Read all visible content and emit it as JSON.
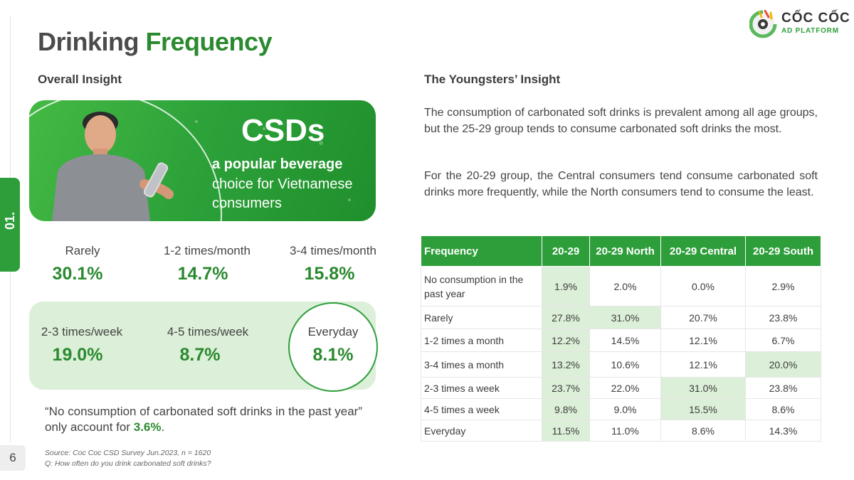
{
  "page": {
    "number": "6",
    "section": "01.",
    "title_part1": "Drinking",
    "title_part2": "Frequency"
  },
  "logo": {
    "brand": "CỐC CỐC",
    "sub": "AD PLATFORM"
  },
  "colors": {
    "brand_green": "#2e9e3a",
    "light_green": "#dcefd8",
    "text_dark": "#3d3d3d"
  },
  "overall": {
    "heading": "Overall Insight",
    "banner": {
      "title": "CSDs",
      "line1": "a popular beverage",
      "line2": "choice for Vietnamese",
      "line3": "consumers"
    },
    "stats": [
      {
        "label": "Rarely",
        "value": "30.1%"
      },
      {
        "label": "1-2 times/month",
        "value": "14.7%"
      },
      {
        "label": "3-4 times/month",
        "value": "15.8%"
      },
      {
        "label": "2-3 times/week",
        "value": "19.0%"
      },
      {
        "label": "4-5 times/week",
        "value": "8.7%"
      },
      {
        "label": "Everyday",
        "value": "8.1%"
      }
    ],
    "quote_text": "“No consumption of carbonated soft drinks in the past year” only account for ",
    "quote_value": "3.6%",
    "quote_end": ".",
    "source_line1": "Source: Coc Coc CSD Survey Jun.2023, n = 1620",
    "source_line2": "Q: How often do you drink carbonated soft drinks?"
  },
  "youngsters": {
    "heading": "The Youngsters’ Insight",
    "paragraph1": "The consumption of carbonated soft drinks is prevalent among all age groups, but the 25-29 group tends to consume carbonated soft drinks the most.",
    "paragraph2": "For the 20-29 group, the Central consumers tend consume carbonated soft drinks more frequently, while the North consumers tend to consume the least.",
    "table": {
      "headers": [
        "Frequency",
        "20-29",
        "20-29 North",
        "20-29 Central",
        "20-29 South"
      ],
      "rows": [
        {
          "label": "No consumption in the past year",
          "values": [
            "1.9%",
            "2.0%",
            "0.0%",
            "2.9%"
          ]
        },
        {
          "label": "Rarely",
          "values": [
            "27.8%",
            "31.0%",
            "20.7%",
            "23.8%"
          ]
        },
        {
          "label": "1-2 times a month",
          "values": [
            "12.2%",
            "14.5%",
            "12.1%",
            "6.7%"
          ]
        },
        {
          "label": "3-4 times a month",
          "values": [
            "13.2%",
            "10.6%",
            "12.1%",
            "20.0%"
          ]
        },
        {
          "label": "2-3 times a week",
          "values": [
            "23.7%",
            "22.0%",
            "31.0%",
            "23.8%"
          ]
        },
        {
          "label": "4-5 times a week",
          "values": [
            "9.8%",
            "9.0%",
            "15.5%",
            "8.6%"
          ]
        },
        {
          "label": "Everyday",
          "values": [
            "11.5%",
            "11.0%",
            "8.6%",
            "14.3%"
          ]
        }
      ]
    }
  }
}
